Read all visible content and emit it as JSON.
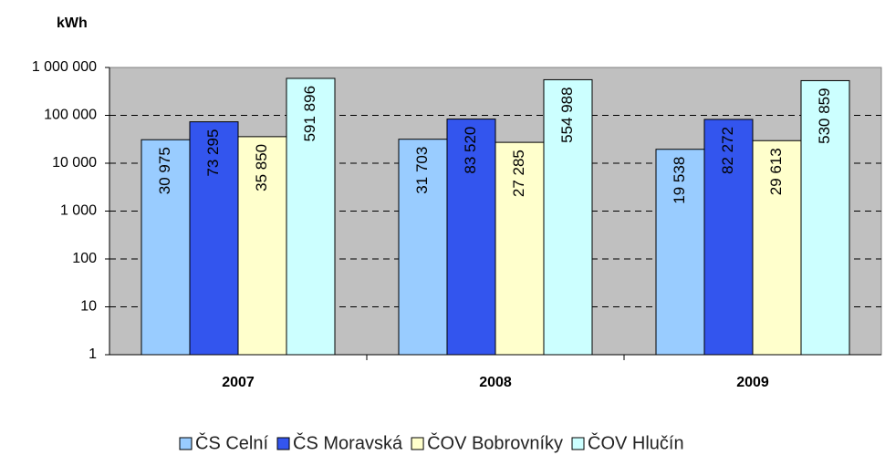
{
  "chart_data": {
    "type": "bar",
    "y_label": "kWh",
    "log_scale": true,
    "grid": true,
    "legend": "bottom",
    "categories": [
      "2007",
      "2008",
      "2009"
    ],
    "series": [
      {
        "name": "ČS Celní",
        "color": "#99ccff",
        "values": [
          30975,
          31703,
          19538
        ],
        "value_labels": [
          "30 975",
          "31 703",
          "19 538"
        ]
      },
      {
        "name": "ČS Moravská",
        "color": "#3355ee",
        "values": [
          73295,
          83520,
          82272
        ],
        "value_labels": [
          "73 295",
          "83 520",
          "82 272"
        ]
      },
      {
        "name": "ČOV Bobrovníky",
        "color": "#ffffcc",
        "values": [
          35850,
          27285,
          29613
        ],
        "value_labels": [
          "35 850",
          "27 285",
          "29 613"
        ]
      },
      {
        "name": "ČOV Hlučín",
        "color": "#ccffff",
        "values": [
          591896,
          554988,
          530859
        ],
        "value_labels": [
          "591 896",
          "554 988",
          "530 859"
        ]
      }
    ],
    "ylim": [
      1,
      1000000
    ],
    "yticks": [
      1,
      10,
      100,
      {
        "value": 1000,
        "label": "1 000"
      },
      {
        "value": 10000,
        "label": "10 000"
      },
      {
        "value": 100000,
        "label": "100 000"
      },
      {
        "value": 1000000,
        "label": "1 000 000"
      }
    ]
  }
}
